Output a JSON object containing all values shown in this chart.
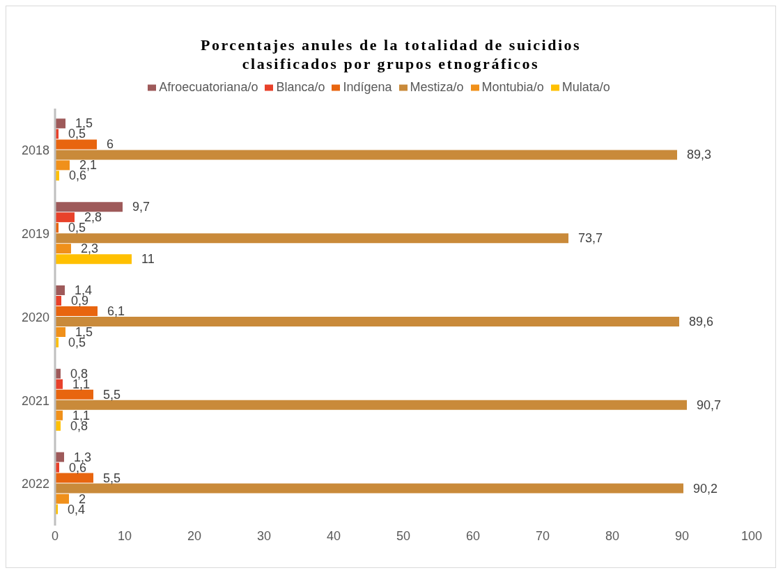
{
  "chart_data": {
    "type": "bar",
    "orientation": "horizontal",
    "title": "Porcentajes anules de la totalidad de suicidios clasificados por grupos etnográficos",
    "categories": [
      "2018",
      "2019",
      "2020",
      "2021",
      "2022"
    ],
    "series": [
      {
        "name": "Afroecuatoriana/o",
        "color": "#9e5a5a",
        "values": [
          1.5,
          9.7,
          1.4,
          0.8,
          1.3
        ],
        "value_labels": [
          "1,5",
          "9,7",
          "1,4",
          "0,8",
          "1,3"
        ]
      },
      {
        "name": "Blanca/o",
        "color": "#e8412a",
        "values": [
          0.5,
          2.8,
          0.9,
          1.1,
          0.6
        ],
        "value_labels": [
          "0,5",
          "2,8",
          "0,9",
          "1,1",
          "0,6"
        ]
      },
      {
        "name": "Indígena",
        "color": "#e8650f",
        "values": [
          6,
          0.5,
          6.1,
          5.5,
          5.5
        ],
        "value_labels": [
          "6",
          "0,5",
          "6,1",
          "5,5",
          "5,5"
        ]
      },
      {
        "name": "Mestiza/o",
        "color": "#c98a3a",
        "values": [
          89.3,
          73.7,
          89.6,
          90.7,
          90.2
        ],
        "value_labels": [
          "89,3",
          "73,7",
          "89,6",
          "90,7",
          "90,2"
        ]
      },
      {
        "name": "Montubia/o",
        "color": "#f0901a",
        "values": [
          2.1,
          2.3,
          1.5,
          1.1,
          2
        ],
        "value_labels": [
          "2,1",
          "2,3",
          "1,5",
          "1,1",
          "2"
        ]
      },
      {
        "name": "Mulata/o",
        "color": "#ffc000",
        "values": [
          0.6,
          11,
          0.5,
          0.8,
          0.4
        ],
        "value_labels": [
          "0,6",
          "11",
          "0,5",
          "0,8",
          "0,4"
        ]
      }
    ],
    "xlim": [
      0,
      100
    ],
    "xticks": [
      0,
      10,
      20,
      30,
      40,
      50,
      60,
      70,
      80,
      90,
      100
    ],
    "grid": false,
    "legend": "top"
  }
}
